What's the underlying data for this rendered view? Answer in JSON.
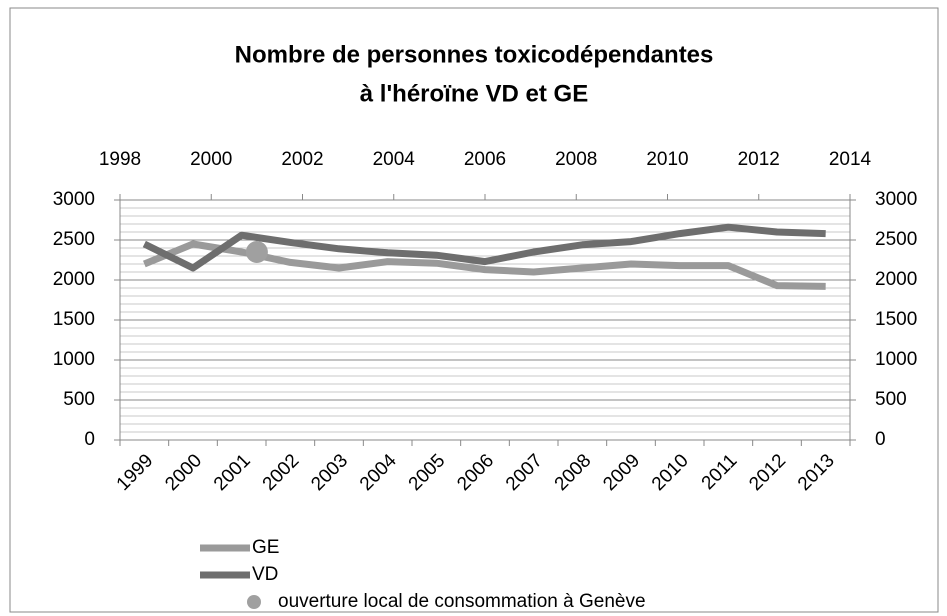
{
  "chart_data": {
    "type": "line",
    "title": [
      "Nombre de personnes toxicodépendantes",
      "à l'héroïne VD et GE"
    ],
    "categories": [
      "1999",
      "2000",
      "2001",
      "2002",
      "2003",
      "2004",
      "2005",
      "2006",
      "2007",
      "2008",
      "2009",
      "2010",
      "2011",
      "2012",
      "2013"
    ],
    "series": [
      {
        "name": "GE",
        "color": "#9a9a9a",
        "values": [
          2200,
          2450,
          2350,
          2220,
          2150,
          2230,
          2210,
          2130,
          2100,
          2150,
          2200,
          2180,
          2180,
          1930,
          1920
        ]
      },
      {
        "name": "VD",
        "color": "#6e6e6e",
        "values": [
          2450,
          2150,
          2560,
          2470,
          2390,
          2340,
          2310,
          2230,
          2350,
          2440,
          2480,
          2580,
          2660,
          2600,
          2580
        ]
      },
      {
        "name": "ouverture local de consommation à Genève",
        "type": "scatter",
        "color": "#a0a0a0",
        "x": [
          2001
        ],
        "values": [
          2350
        ],
        "axis": "x2"
      }
    ],
    "ylim": [
      0,
      3000
    ],
    "yticks": [
      0,
      500,
      1000,
      1500,
      2000,
      2500,
      3000
    ],
    "y2lim": [
      0,
      3000
    ],
    "y2ticks": [
      0,
      500,
      1000,
      1500,
      2000,
      2500,
      3000
    ],
    "x2lim": [
      1998,
      2014
    ],
    "x2ticks": [
      1998,
      2000,
      2002,
      2004,
      2006,
      2008,
      2010,
      2012,
      2014
    ],
    "grid": true,
    "minor_grid": true
  }
}
